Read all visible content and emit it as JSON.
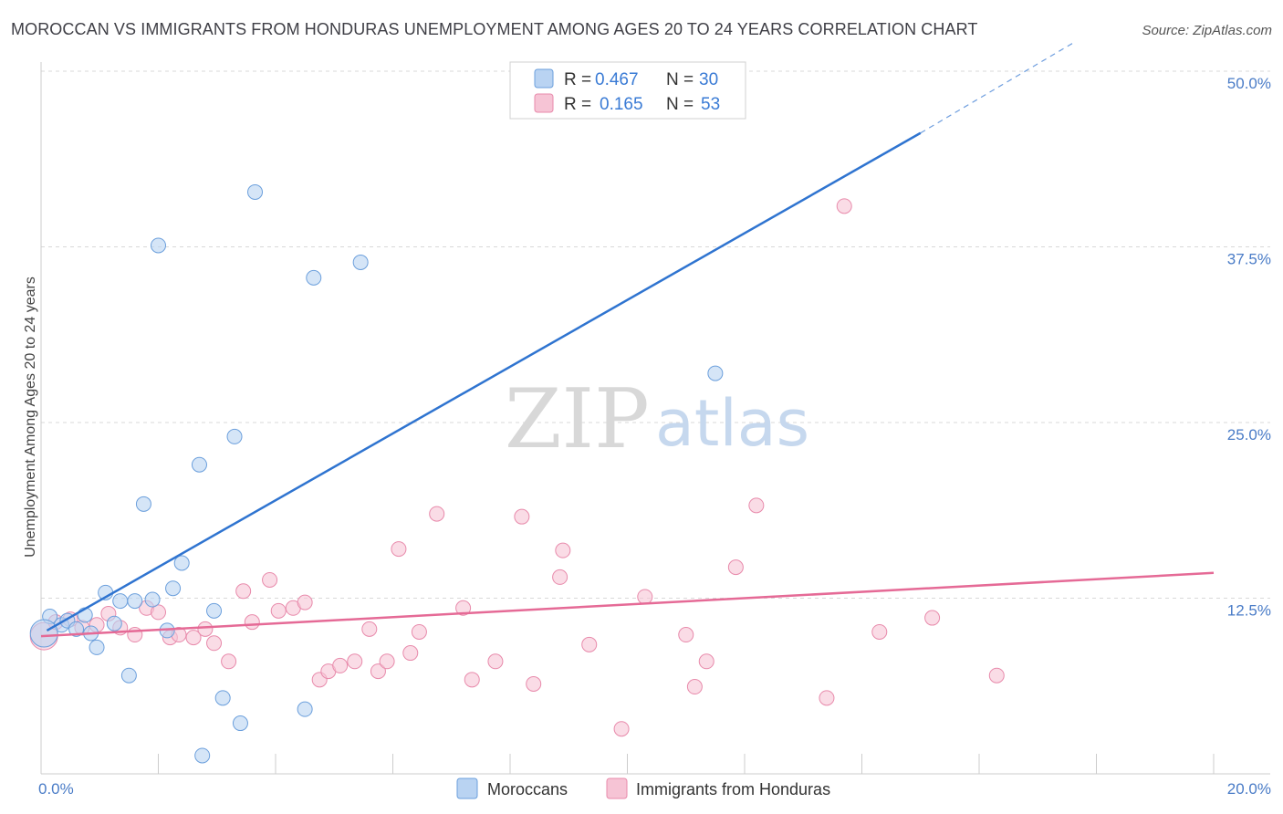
{
  "title": "MOROCCAN VS IMMIGRANTS FROM HONDURAS UNEMPLOYMENT AMONG AGES 20 TO 24 YEARS CORRELATION CHART",
  "source": "Source: ZipAtlas.com",
  "watermark": {
    "zip": "ZIP",
    "atlas": "atlas"
  },
  "colors": {
    "blue_fill": "#b9d3f2",
    "blue_stroke": "#6b9fdc",
    "blue_line": "#2f74d0",
    "pink_fill": "#f6c4d5",
    "pink_stroke": "#e88aab",
    "pink_line": "#e56a96",
    "axis_text": "#4a7cc7",
    "grid": "#d9d9d9"
  },
  "legend": {
    "row1": {
      "r_label": "R =",
      "r_value": "0.467",
      "n_label": "N =",
      "n_value": "30"
    },
    "row2": {
      "r_label": "R =",
      "r_value": "0.165",
      "n_label": "N =",
      "n_value": "53"
    }
  },
  "chart_data": {
    "type": "scatter",
    "title": "MOROCCAN VS IMMIGRANTS FROM HONDURAS UNEMPLOYMENT AMONG AGES 20 TO 24 YEARS CORRELATION CHART",
    "xlabel": "",
    "ylabel": "Unemployment Among Ages 20 to 24 years",
    "xlim": [
      0,
      20
    ],
    "ylim": [
      0,
      50
    ],
    "x_tick_labels": [
      "0.0%",
      "20.0%"
    ],
    "y_ticks": [
      12.5,
      25.0,
      37.5,
      50.0
    ],
    "y_tick_labels": [
      "12.5%",
      "25.0%",
      "37.5%",
      "50.0%"
    ],
    "grid": true,
    "legend_position": "top-center",
    "series": [
      {
        "name": "Moroccans",
        "color": "#6b9fdc",
        "r": 0.467,
        "n": 30,
        "trend": {
          "x_start": 0.1,
          "y_start": 10.2,
          "x_solid_end": 15.0,
          "y_solid_end": 45.6,
          "x_dash_end": 17.6,
          "y_dash_end": 52.0
        },
        "points": [
          [
            0.15,
            11.2
          ],
          [
            0.35,
            10.6
          ],
          [
            0.45,
            10.9
          ],
          [
            0.6,
            10.3
          ],
          [
            0.75,
            11.3
          ],
          [
            0.85,
            10.0
          ],
          [
            0.95,
            9.0
          ],
          [
            1.1,
            12.9
          ],
          [
            1.25,
            10.7
          ],
          [
            1.35,
            12.3
          ],
          [
            1.5,
            7.0
          ],
          [
            1.6,
            12.3
          ],
          [
            1.75,
            19.2
          ],
          [
            1.9,
            12.4
          ],
          [
            2.0,
            37.6
          ],
          [
            2.15,
            10.2
          ],
          [
            2.25,
            13.2
          ],
          [
            2.4,
            15.0
          ],
          [
            2.7,
            22.0
          ],
          [
            2.75,
            1.3
          ],
          [
            2.95,
            11.6
          ],
          [
            3.1,
            5.4
          ],
          [
            3.3,
            24.0
          ],
          [
            3.4,
            3.6
          ],
          [
            3.65,
            41.4
          ],
          [
            4.5,
            4.6
          ],
          [
            4.65,
            35.3
          ],
          [
            5.45,
            36.4
          ],
          [
            11.5,
            28.5
          ],
          [
            0.05,
            10.0
          ]
        ]
      },
      {
        "name": "Immigrants from Honduras",
        "color": "#e88aab",
        "r": 0.165,
        "n": 53,
        "trend": {
          "x_start": 0.0,
          "y_start": 9.8,
          "x_end": 20.0,
          "y_end": 14.3
        },
        "points": [
          [
            0.05,
            9.8
          ],
          [
            0.25,
            10.8
          ],
          [
            0.5,
            11.0
          ],
          [
            0.7,
            10.4
          ],
          [
            0.95,
            10.6
          ],
          [
            1.15,
            11.4
          ],
          [
            1.35,
            10.4
          ],
          [
            1.6,
            9.9
          ],
          [
            1.8,
            11.8
          ],
          [
            2.0,
            11.5
          ],
          [
            2.2,
            9.7
          ],
          [
            2.35,
            9.9
          ],
          [
            2.6,
            9.7
          ],
          [
            2.8,
            10.3
          ],
          [
            2.95,
            9.3
          ],
          [
            3.2,
            8.0
          ],
          [
            3.45,
            13.0
          ],
          [
            3.6,
            10.8
          ],
          [
            3.9,
            13.8
          ],
          [
            4.05,
            11.6
          ],
          [
            4.3,
            11.8
          ],
          [
            4.5,
            12.2
          ],
          [
            4.75,
            6.7
          ],
          [
            4.9,
            7.3
          ],
          [
            5.1,
            7.7
          ],
          [
            5.35,
            8.0
          ],
          [
            5.6,
            10.3
          ],
          [
            5.75,
            7.3
          ],
          [
            5.9,
            8.0
          ],
          [
            6.1,
            16.0
          ],
          [
            6.3,
            8.6
          ],
          [
            6.45,
            10.1
          ],
          [
            6.75,
            18.5
          ],
          [
            7.2,
            11.8
          ],
          [
            7.35,
            6.7
          ],
          [
            7.75,
            8.0
          ],
          [
            8.2,
            18.3
          ],
          [
            8.4,
            6.4
          ],
          [
            8.85,
            14.0
          ],
          [
            8.9,
            15.9
          ],
          [
            9.35,
            9.2
          ],
          [
            9.9,
            3.2
          ],
          [
            10.3,
            12.6
          ],
          [
            11.0,
            9.9
          ],
          [
            11.15,
            6.2
          ],
          [
            11.35,
            8.0
          ],
          [
            11.85,
            14.7
          ],
          [
            12.2,
            19.1
          ],
          [
            13.4,
            5.4
          ],
          [
            13.7,
            40.4
          ],
          [
            14.3,
            10.1
          ],
          [
            15.2,
            11.1
          ],
          [
            16.3,
            7.0
          ]
        ]
      }
    ]
  }
}
